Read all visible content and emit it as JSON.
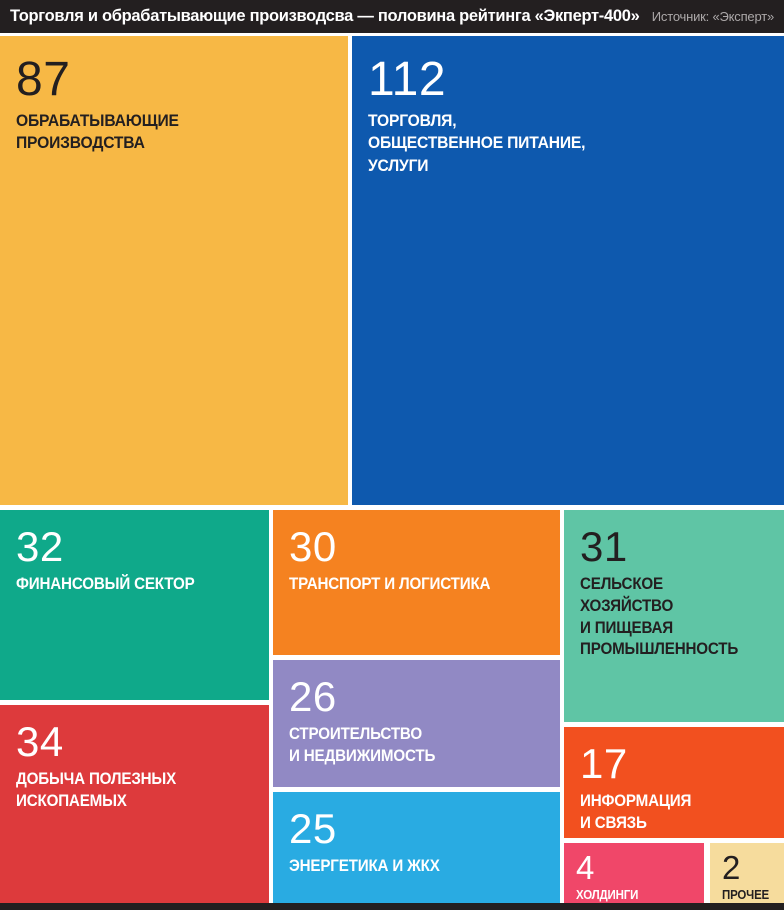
{
  "header": {
    "title": "Торговля и обрабатывающие производсва — половина рейтинга «Экперт-400»",
    "source": "Источник: «Эксперт»",
    "bg_color": "#231F20",
    "title_color": "#FFFFFF",
    "source_color": "#C9C6C6"
  },
  "footer": {
    "bg_color": "#231F20"
  },
  "chart_data": {
    "type": "treemap",
    "title": "Торговля и обрабатывающие производсва — половина рейтинга «Экперт-400»",
    "source": "Источник: «Эксперт»",
    "legend_position": "none",
    "items": [
      {
        "label": "ОБРАБАТЫВАЮЩИЕ\nПРОИЗВОДСТВА",
        "value": 87,
        "color": "#F7B845",
        "text_color": "#231F20"
      },
      {
        "label": "ТОРГОВЛЯ,\nОБЩЕСТВЕННОЕ ПИТАНИЕ,\nУСЛУГИ",
        "value": 112,
        "color": "#0E59AE",
        "text_color": "#FFFFFF"
      },
      {
        "label": "ФИНАНСОВЫЙ СЕКТОР",
        "value": 32,
        "color": "#0FA98A",
        "text_color": "#FFFFFF"
      },
      {
        "label": "ТРАНСПОРТ И ЛОГИСТИКА",
        "value": 30,
        "color": "#F58220",
        "text_color": "#FFFFFF"
      },
      {
        "label": "СЕЛЬСКОЕ ХОЗЯЙСТВО\nИ ПИЩЕВАЯ\nПРОМЫШЛЕННОСТЬ",
        "value": 31,
        "color": "#5FC5A5",
        "text_color": "#231F20"
      },
      {
        "label": "ДОБЫЧА ПОЛЕЗНЫХ\nИСКОПАЕМЫХ",
        "value": 34,
        "color": "#DD3A3C",
        "text_color": "#FFFFFF"
      },
      {
        "label": "СТРОИТЕЛЬСТВО\nИ НЕДВИЖИМОСТЬ",
        "value": 26,
        "color": "#9189C4",
        "text_color": "#FFFFFF"
      },
      {
        "label": "ЭНЕРГЕТИКА И ЖКХ",
        "value": 25,
        "color": "#29ABE2",
        "text_color": "#FFFFFF"
      },
      {
        "label": "ИНФОРМАЦИЯ\nИ СВЯЗЬ",
        "value": 17,
        "color": "#F2501F",
        "text_color": "#FFFFFF"
      },
      {
        "label": "ХОЛДИНГИ",
        "value": 4,
        "color": "#F04769",
        "text_color": "#FFFFFF"
      },
      {
        "label": "ПРОЧЕЕ",
        "value": 2,
        "color": "#F6DC9D",
        "text_color": "#231F20"
      }
    ]
  }
}
